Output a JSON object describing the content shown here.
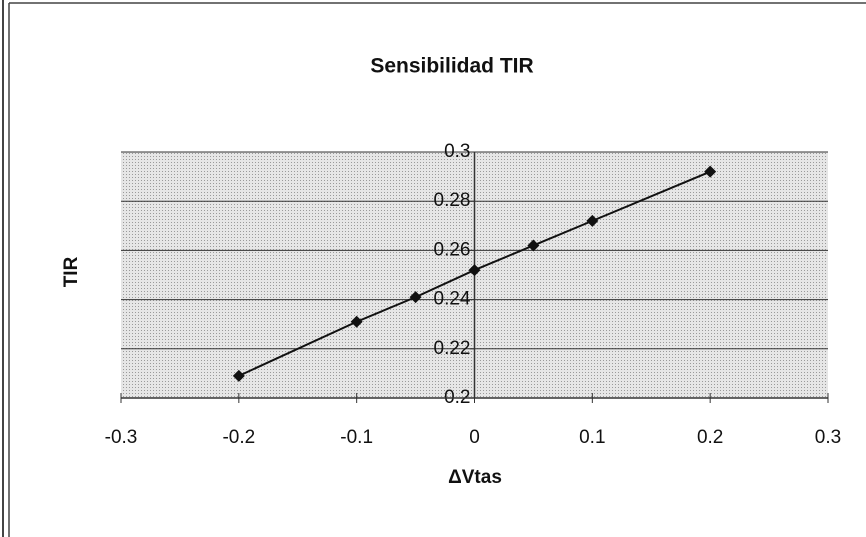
{
  "chart_data": {
    "type": "scatter",
    "title": "Sensibilidad TIR",
    "x_label": "ΔVtas",
    "y_label": "TIR",
    "x": [
      -0.2,
      -0.1,
      -0.05,
      0,
      0.05,
      0.1,
      0.2
    ],
    "series": [
      {
        "name": "TIR",
        "color": "#111111",
        "values": [
          0.209,
          0.231,
          0.241,
          0.252,
          0.262,
          0.272,
          0.292
        ]
      }
    ],
    "xlim": [
      -0.3,
      0.3
    ],
    "xticks": [
      -0.3,
      -0.2,
      -0.1,
      0,
      0.1,
      0.2,
      0.3
    ],
    "ylim": [
      0.2,
      0.3
    ],
    "yticks": [
      0.2,
      0.22,
      0.24,
      0.26,
      0.28,
      0.3
    ],
    "grid": true
  }
}
